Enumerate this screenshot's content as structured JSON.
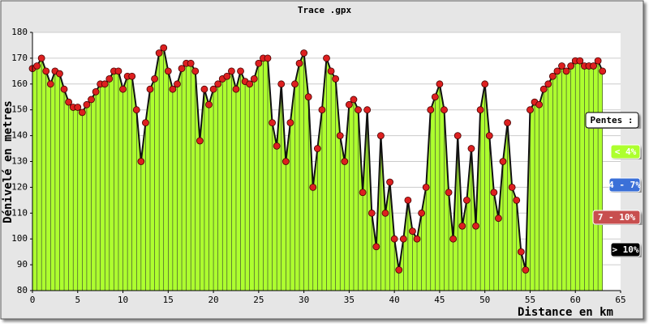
{
  "chart_data": {
    "type": "area",
    "title": "Trace .gpx",
    "y_label": "Dénivelé en metres",
    "x_label": "Distance en km",
    "legend_title": "Pentes :",
    "slope_legend": [
      {
        "label": "< 4%",
        "color": "#adff2f"
      },
      {
        "label": "4 - 7%",
        "color": "#3a6fd8"
      },
      {
        "label": "7 - 10%",
        "color": "#c85050"
      },
      {
        "label": "> 10%",
        "color": "#000000"
      }
    ],
    "color": "#adff2f",
    "marker_color": "#dd2020",
    "grid": true,
    "xlim": [
      0,
      65
    ],
    "xticks": [
      0,
      5,
      10,
      15,
      20,
      25,
      30,
      35,
      40,
      45,
      50,
      55,
      60,
      65
    ],
    "ylim": [
      80,
      180
    ],
    "yticks": [
      80,
      90,
      100,
      110,
      120,
      130,
      140,
      150,
      160,
      170,
      180
    ],
    "x": [
      0,
      0.5,
      1,
      1.5,
      2,
      2.5,
      3,
      3.5,
      4,
      4.5,
      5,
      5.5,
      6,
      6.5,
      7,
      7.5,
      8,
      8.5,
      9,
      9.5,
      10,
      10.5,
      11,
      11.5,
      12,
      12.5,
      13,
      13.5,
      14,
      14.5,
      15,
      15.5,
      16,
      16.5,
      17,
      17.5,
      18,
      18.5,
      19,
      19.5,
      20,
      20.5,
      21,
      21.5,
      22,
      22.5,
      23,
      23.5,
      24,
      24.5,
      25,
      25.5,
      26,
      26.5,
      27,
      27.5,
      28,
      28.5,
      29,
      29.5,
      30,
      30.5,
      31,
      31.5,
      32,
      32.5,
      33,
      33.5,
      34,
      34.5,
      35,
      35.5,
      36,
      36.5,
      37,
      37.5,
      38,
      38.5,
      39,
      39.5,
      40,
      40.5,
      41,
      41.5,
      42,
      42.5,
      43,
      43.5,
      44,
      44.5,
      45,
      45.5,
      46,
      46.5,
      47,
      47.5,
      48,
      48.5,
      49,
      49.5,
      50,
      50.5,
      51,
      51.5,
      52,
      52.5,
      53,
      53.5,
      54,
      54.5,
      55,
      55.5,
      56,
      56.5,
      57,
      57.5,
      58,
      58.5,
      59,
      59.5,
      60,
      60.5,
      61,
      61.5,
      62,
      62.5,
      63
    ],
    "values": [
      166,
      167,
      170,
      165,
      160,
      165,
      164,
      158,
      153,
      151,
      151,
      149,
      152,
      154,
      157,
      160,
      160,
      162,
      165,
      165,
      158,
      163,
      163,
      150,
      130,
      145,
      158,
      162,
      172,
      174,
      165,
      158,
      160,
      166,
      168,
      168,
      165,
      138,
      158,
      152,
      158,
      160,
      162,
      163,
      165,
      158,
      165,
      161,
      160,
      162,
      168,
      170,
      170,
      145,
      136,
      160,
      130,
      145,
      160,
      168,
      172,
      155,
      120,
      135,
      150,
      170,
      165,
      162,
      140,
      130,
      152,
      154,
      150,
      118,
      150,
      110,
      97,
      140,
      110,
      122,
      100,
      88,
      100,
      115,
      103,
      100,
      110,
      120,
      150,
      155,
      160,
      150,
      118,
      100,
      140,
      105,
      115,
      135,
      105,
      150,
      160,
      140,
      118,
      108,
      130,
      145,
      120,
      115,
      95,
      88,
      150,
      153,
      152,
      158,
      160,
      163,
      165,
      167,
      165,
      167,
      169,
      169,
      167,
      167,
      167,
      169,
      165
    ]
  }
}
